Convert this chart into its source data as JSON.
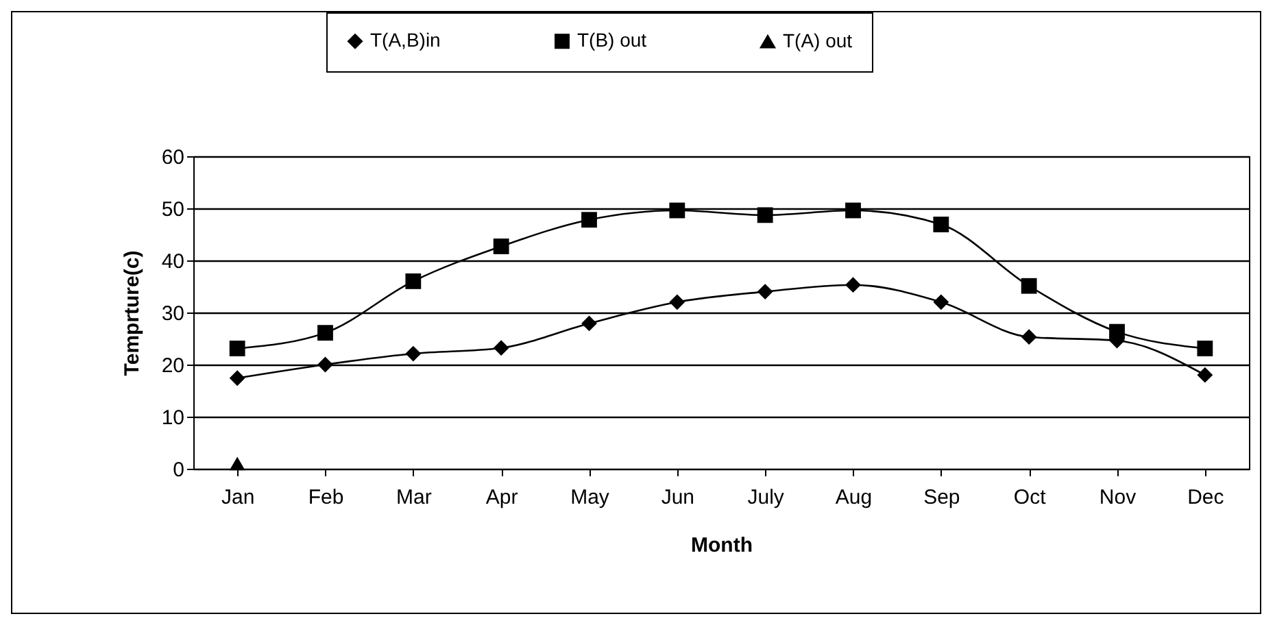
{
  "chart_data": {
    "type": "line",
    "xlabel": "Month",
    "ylabel": "Temprture(c)",
    "categories": [
      "Jan",
      "Feb",
      "Mar",
      "Apr",
      "May",
      "Jun",
      "July",
      "Aug",
      "Sep",
      "Oct",
      "Nov",
      "Dec"
    ],
    "series": [
      {
        "name": "T(A,B)in",
        "color": "#000000",
        "marker": "diamond",
        "values": [
          17.4,
          20,
          22.1,
          23.2,
          27.9,
          32,
          34,
          35.3,
          32,
          25.3,
          24.6,
          18
        ]
      },
      {
        "name": "T(B) out",
        "color": "#000000",
        "marker": "square",
        "values": [
          23.1,
          26.1,
          36,
          42.7,
          47.8,
          49.6,
          48.7,
          49.6,
          46.9,
          35.1,
          26.3,
          23.1
        ]
      },
      {
        "name": "T(A) out",
        "color": "#000000",
        "marker": "triangle",
        "values": [
          1,
          null,
          null,
          null,
          null,
          null,
          null,
          null,
          null,
          null,
          null,
          null
        ]
      }
    ],
    "ylim": [
      0,
      60
    ],
    "yticks": [
      0,
      10,
      20,
      30,
      40,
      50,
      60
    ],
    "grid": "y",
    "legend": "top",
    "line_style": "solid"
  }
}
